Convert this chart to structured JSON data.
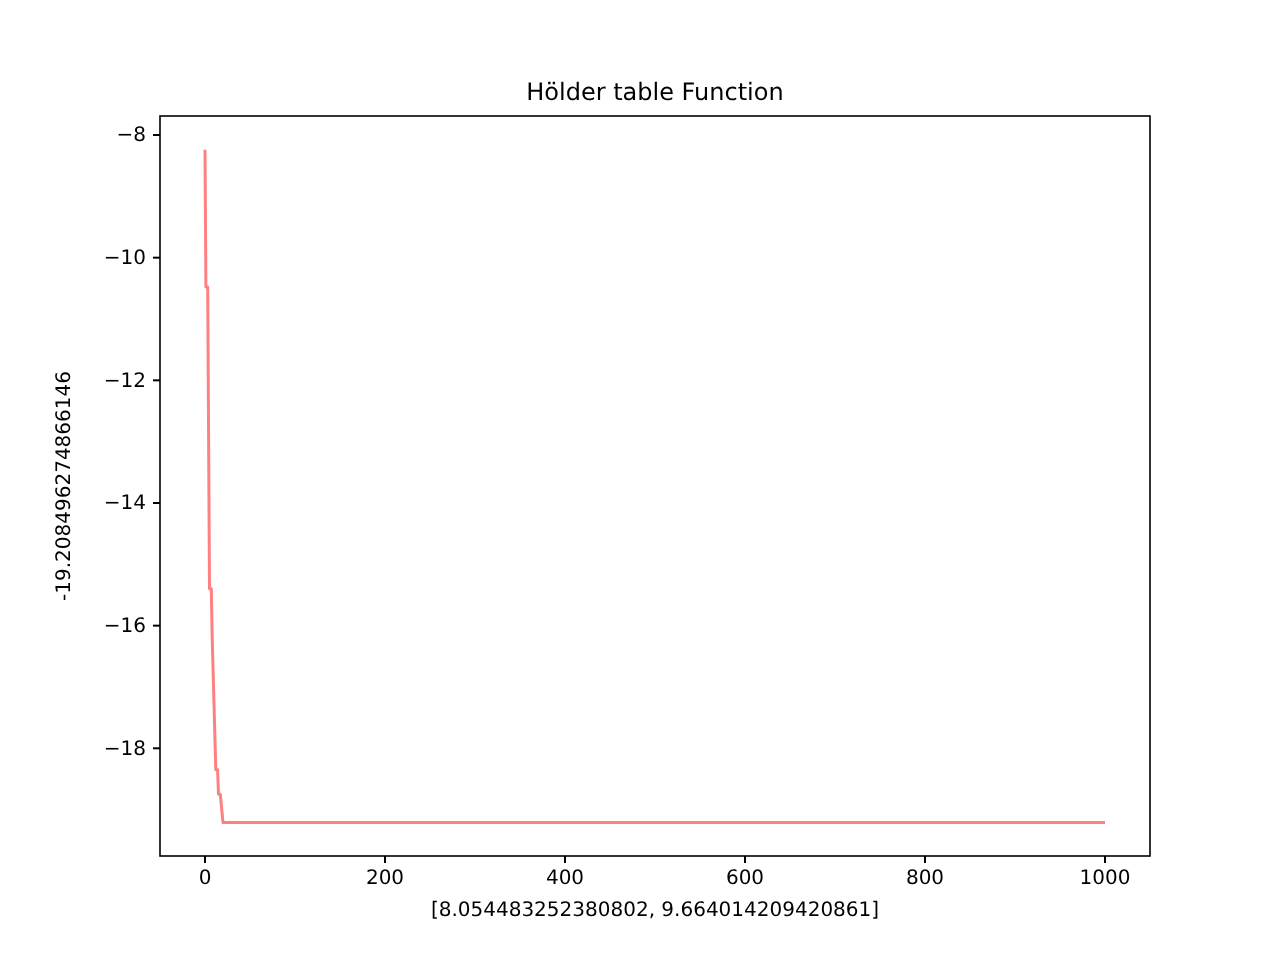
{
  "chart_data": {
    "type": "line",
    "title": "Hölder table Function",
    "xlabel": "[8.054483252380802, 9.664014209420861]",
    "ylabel": "-19.208496274866146",
    "x": [
      0,
      1,
      3,
      5,
      7,
      8,
      12,
      14,
      15,
      17,
      20,
      25,
      1000
    ],
    "series": [
      {
        "color": "#ff8080",
        "values": [
          -8.24,
          -10.48,
          -10.48,
          -15.4,
          -15.4,
          -16.2,
          -18.35,
          -18.35,
          -18.75,
          -18.75,
          -19.21,
          -19.21,
          -19.21
        ]
      }
    ],
    "xlim": [
      -50,
      1050
    ],
    "ylim": [
      -19.756,
      -7.69
    ],
    "xticks": [
      0,
      200,
      400,
      600,
      800,
      1000
    ],
    "yticks": [
      -18,
      -16,
      -14,
      -12,
      -10,
      -8
    ],
    "grid": false
  }
}
